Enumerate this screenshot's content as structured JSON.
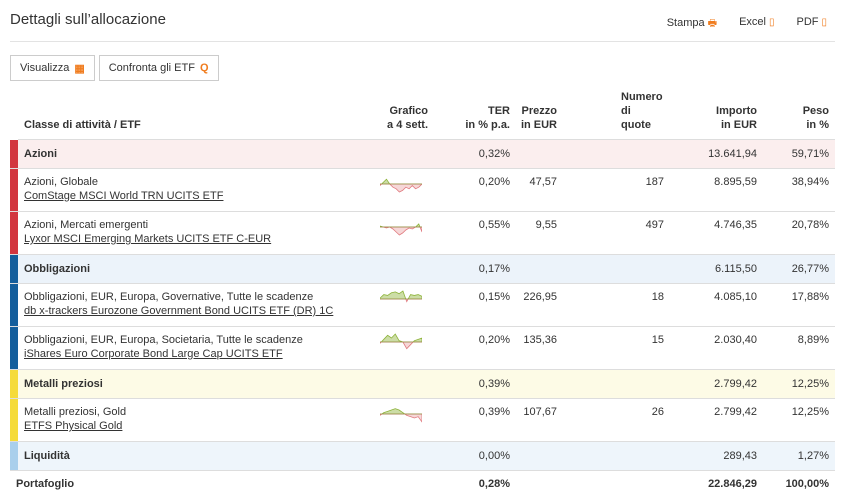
{
  "header": {
    "title": "Dettagli sull’allocazione",
    "print": "Stampa",
    "excel": "Excel",
    "pdf": "PDF"
  },
  "toolbar": {
    "view": "Visualizza",
    "compare": "Confronta gli ETF"
  },
  "columns": {
    "class": "Classe di attività / ETF",
    "chart1": "Grafico",
    "chart2": "a 4 sett.",
    "ter1": "TER",
    "ter2": "in % p.a.",
    "price1": "Prezzo",
    "price2": "in EUR",
    "qty1": "Numero",
    "qty2": "di quote",
    "amount1": "Importo",
    "amount2": "in EUR",
    "weight1": "Peso",
    "weight2": "in %"
  },
  "colors": {
    "azioni": "#d2363f",
    "obbligazioni": "#145e9c",
    "metalli": "#f5db3a",
    "liquidita": "#a9cfec",
    "azioni_bg": "#fbeeee",
    "obbligazioni_bg": "#ecf3fa",
    "metalli_bg": "#fdfbe6",
    "liquidita_bg": "#eef5fb",
    "spark_up": "#8db33a",
    "spark_down": "#e07a7f"
  },
  "rows": [
    {
      "type": "group",
      "key": "azioni",
      "name": "Azioni",
      "ter": "0,32%",
      "amount": "13.641,94",
      "weight": "59,71%"
    },
    {
      "type": "item",
      "key": "azioni",
      "category": "Azioni, Globale",
      "etf": "ComStage MSCI World TRN UCITS ETF",
      "ter": "0,20%",
      "price": "47,57",
      "qty": "187",
      "amount": "8.895,59",
      "weight": "38,94%",
      "spark": [
        -1,
        1,
        3,
        0,
        -2,
        -3,
        -5,
        -4,
        -2,
        -3,
        -1,
        -3,
        -2,
        0
      ]
    },
    {
      "type": "item",
      "key": "azioni",
      "category": "Azioni, Mercati emergenti",
      "etf": "Lyxor MSCI Emerging Markets UCITS ETF C-EUR",
      "ter": "0,55%",
      "price": "9,55",
      "qty": "497",
      "amount": "4.746,35",
      "weight": "20,78%",
      "spark": [
        1,
        0,
        -1,
        0,
        -2,
        -5,
        -8,
        -6,
        -3,
        -1,
        -2,
        0,
        3,
        -5
      ]
    },
    {
      "type": "group",
      "key": "obbligazioni",
      "name": "Obbligazioni",
      "ter": "0,17%",
      "amount": "6.115,50",
      "weight": "26,77%"
    },
    {
      "type": "item",
      "key": "obbligazioni",
      "category": "Obbligazioni, EUR, Europa, Governative, Tutte le scadenze",
      "etf": "db x-trackers Eurozone Government Bond UCITS ETF (DR) 1C",
      "ter": "0,15%",
      "price": "226,95",
      "qty": "18",
      "amount": "4.085,10",
      "weight": "17,88%",
      "spark": [
        1,
        5,
        4,
        7,
        8,
        6,
        9,
        -3,
        5,
        4,
        5,
        3
      ]
    },
    {
      "type": "item",
      "key": "obbligazioni",
      "category": "Obbligazioni, EUR, Europa, Societaria, Tutte le scadenze",
      "etf": "iShares Euro Corporate Bond Large Cap UCITS ETF",
      "ter": "0,20%",
      "price": "135,36",
      "qty": "15",
      "amount": "2.030,40",
      "weight": "8,89%",
      "spark": [
        -1,
        2,
        5,
        3,
        6,
        1,
        0,
        -5,
        -2,
        1,
        2,
        3
      ]
    },
    {
      "type": "group",
      "key": "metalli",
      "name": "Metalli preziosi",
      "ter": "0,39%",
      "amount": "2.799,42",
      "weight": "12,25%"
    },
    {
      "type": "item",
      "key": "metalli",
      "category": "Metalli preziosi, Gold",
      "etf": "ETFS Physical Gold",
      "ter": "0,39%",
      "price": "107,67",
      "qty": "26",
      "amount": "2.799,42",
      "weight": "12,25%",
      "spark": [
        -1,
        1,
        2,
        3,
        4,
        3,
        1,
        -1,
        -2,
        -3,
        -2,
        -6
      ]
    },
    {
      "type": "group",
      "key": "liquidita",
      "name": "Liquidità",
      "ter": "0,00%",
      "amount": "289,43",
      "weight": "1,27%"
    }
  ],
  "total": {
    "name": "Portafoglio",
    "ter": "0,28%",
    "amount": "22.846,29",
    "weight": "100,00%"
  }
}
